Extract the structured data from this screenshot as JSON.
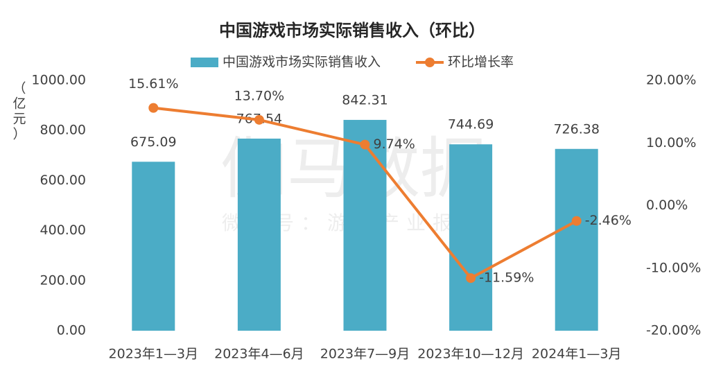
{
  "chart_data": {
    "type": "bar_line",
    "title": "中国游戏市场实际销售收入（环比）",
    "y_label": "（亿元）",
    "watermark": [
      "伽马数据",
      "微信号：游戏产业报告"
    ],
    "categories": [
      "2023年1—3月",
      "2023年4—6月",
      "2023年7—9月",
      "2023年10—12月",
      "2024年1—3月"
    ],
    "series": [
      {
        "name": "中国游戏市场实际销售收入",
        "type": "bar",
        "color": "#4bacc6",
        "values": [
          675.09,
          767.54,
          842.31,
          744.69,
          726.38
        ]
      },
      {
        "name": "环比增长率",
        "type": "line",
        "axis": "y2",
        "color": "#ed7d31",
        "values": [
          15.61,
          13.7,
          9.74,
          -11.59,
          -2.46
        ],
        "value_labels": [
          "15.61%",
          "13.70%",
          "9.74%",
          "-11.59%",
          "-2.46%"
        ]
      }
    ],
    "ylim": [
      0,
      1000
    ],
    "yticks": [
      {
        "value": 0,
        "label": "0.00"
      },
      {
        "value": 200,
        "label": "200.00"
      },
      {
        "value": 400,
        "label": "400.00"
      },
      {
        "value": 600,
        "label": "600.00"
      },
      {
        "value": 800,
        "label": "800.00"
      },
      {
        "value": 1000,
        "label": "1000.00"
      }
    ],
    "y2lim": [
      -20,
      20
    ],
    "y2ticks": [
      {
        "value": -20,
        "label": "-20.00%"
      },
      {
        "value": -10,
        "label": "-10.00%"
      },
      {
        "value": 0,
        "label": "0.00%"
      },
      {
        "value": 10,
        "label": "10.00%"
      },
      {
        "value": 20,
        "label": "20.00%"
      }
    ],
    "legend": "top"
  }
}
